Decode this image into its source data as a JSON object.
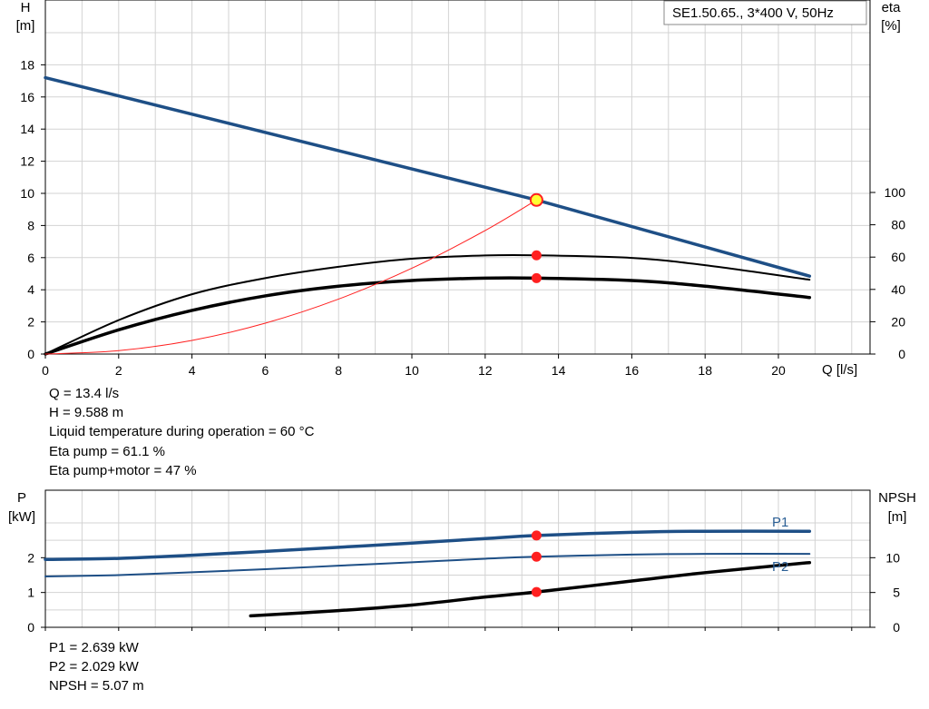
{
  "upper": {
    "title": "SE1.50.65., 3*400 V, 50Hz",
    "y_left_label": [
      "H",
      "[m]"
    ],
    "y_right_label": [
      "eta",
      "[%]"
    ],
    "x_label": "Q [l/s]",
    "x_ticks": [
      "0",
      "2",
      "4",
      "6",
      "8",
      "10",
      "12",
      "14",
      "16",
      "18",
      "20"
    ],
    "y_left_ticks": [
      "0",
      "2",
      "4",
      "6",
      "8",
      "10",
      "12",
      "14",
      "16",
      "18"
    ],
    "y_right_ticks": [
      "0",
      "20",
      "40",
      "60",
      "80",
      "100"
    ],
    "info": [
      "Q = 13.4 l/s",
      "H = 9.588 m",
      "Liquid temperature during operation = 60 °C",
      "Eta pump = 61.1 %",
      "Eta pump+motor = 47 %"
    ]
  },
  "lower": {
    "y_left_label": [
      "P",
      "[kW]"
    ],
    "y_right_label": [
      "NPSH",
      "[m]"
    ],
    "y_left_ticks": [
      "0",
      "1",
      "2"
    ],
    "y_right_ticks": [
      "0",
      "5",
      "10"
    ],
    "curve_labels": {
      "p1": "P1",
      "p2": "P2"
    },
    "info": [
      "P1 = 2.639 kW",
      "P2 = 2.029 kW",
      "NPSH = 5.07 m"
    ]
  },
  "colors": {
    "blue": "#1e4f86",
    "red": "#ff2020",
    "grid": "#d3d3d3",
    "marker_yellow": "#ffff33"
  },
  "chart_data": [
    {
      "type": "line",
      "title": "SE1.50.65., 3*400 V, 50Hz",
      "xlabel": "Q [l/s]",
      "ylabel": "H [m]",
      "y2label": "eta [%]",
      "xlim": [
        0,
        22.5
      ],
      "ylim": [
        0,
        20
      ],
      "y2lim": [
        0,
        100
      ],
      "grid": true,
      "duty_point": {
        "Q": 13.4,
        "H": 9.588,
        "eta_pump": 61.1,
        "eta_total": 47
      },
      "series": [
        {
          "name": "H",
          "axis": "left",
          "color": "#1e4f86",
          "x": [
            0,
            13.4,
            20.85
          ],
          "y": [
            17.2,
            9.588,
            4.85
          ]
        },
        {
          "name": "Eta pump",
          "axis": "right",
          "color": "#000000",
          "x": [
            0,
            2,
            4,
            6,
            8,
            10,
            12,
            13.4,
            16,
            18,
            20.85
          ],
          "y": [
            0,
            21,
            37,
            47,
            54,
            59,
            61,
            61.1,
            59.5,
            55,
            46
          ]
        },
        {
          "name": "Eta pump+motor",
          "axis": "right",
          "color": "#000000",
          "x": [
            0,
            2,
            4,
            6,
            8,
            10,
            12,
            13.4,
            16,
            18,
            20.85
          ],
          "y": [
            0,
            15,
            27,
            36,
            42,
            45.5,
            47,
            47,
            45.5,
            42,
            35
          ]
        },
        {
          "name": "System curve",
          "axis": "left",
          "color": "#ff2020",
          "x": [
            0,
            2,
            4,
            6,
            8,
            10,
            12,
            13.4
          ],
          "y": [
            0,
            0.21,
            0.85,
            1.92,
            3.42,
            5.34,
            7.69,
            9.588
          ]
        }
      ]
    },
    {
      "type": "line",
      "xlabel": "Q [l/s]",
      "ylabel": "P [kW]",
      "y2label": "NPSH [m]",
      "xlim": [
        0,
        22.5
      ],
      "ylim": [
        0,
        3
      ],
      "y2lim": [
        0,
        15
      ],
      "grid": true,
      "duty_point": {
        "P1": 2.639,
        "P2": 2.029,
        "NPSH": 5.07
      },
      "series": [
        {
          "name": "P1",
          "axis": "left",
          "color": "#1e4f86",
          "x": [
            0,
            2,
            4,
            6,
            8,
            10,
            12,
            13.4,
            16,
            18,
            20.85
          ],
          "y": [
            1.95,
            1.98,
            2.07,
            2.18,
            2.3,
            2.42,
            2.55,
            2.639,
            2.73,
            2.76,
            2.76
          ]
        },
        {
          "name": "P2",
          "axis": "left",
          "color": "#1e4f86",
          "x": [
            0,
            2,
            4,
            6,
            8,
            10,
            12,
            13.4,
            16,
            18,
            20.85
          ],
          "y": [
            1.46,
            1.5,
            1.58,
            1.67,
            1.77,
            1.87,
            1.97,
            2.029,
            2.09,
            2.11,
            2.11
          ]
        },
        {
          "name": "NPSH",
          "axis": "right",
          "color": "#000000",
          "x": [
            5.6,
            8,
            10,
            12,
            13.4,
            16,
            18,
            20.85
          ],
          "y": [
            1.65,
            2.4,
            3.2,
            4.35,
            5.07,
            6.65,
            7.85,
            9.3
          ]
        }
      ]
    }
  ]
}
